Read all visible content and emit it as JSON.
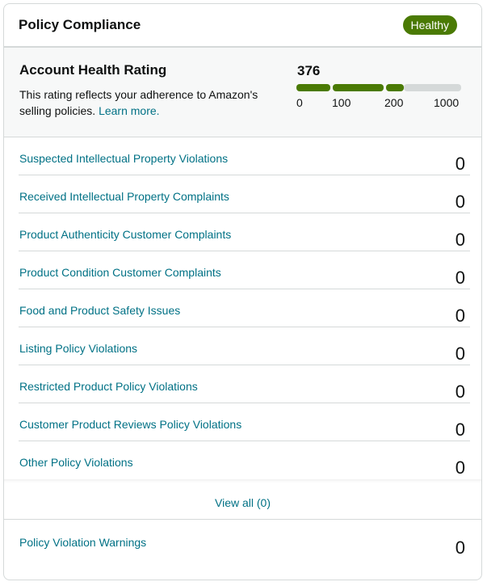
{
  "header": {
    "title": "Policy Compliance",
    "badge": "Healthy"
  },
  "rating": {
    "title": "Account Health Rating",
    "description": "This rating reflects your adherence to Amazon's selling policies.",
    "learn_more": "Learn more.",
    "score": "376",
    "scale_max": 1000,
    "ticks": [
      "0",
      "100",
      "200",
      "1000"
    ]
  },
  "violations": [
    {
      "label": "Suspected Intellectual Property Violations",
      "count": "0"
    },
    {
      "label": "Received Intellectual Property Complaints",
      "count": "0"
    },
    {
      "label": "Product Authenticity Customer Complaints",
      "count": "0"
    },
    {
      "label": "Product Condition Customer Complaints",
      "count": "0"
    },
    {
      "label": "Food and Product Safety Issues",
      "count": "0"
    },
    {
      "label": "Listing Policy Violations",
      "count": "0"
    },
    {
      "label": "Restricted Product Policy Violations",
      "count": "0"
    },
    {
      "label": "Customer Product Reviews Policy Violations",
      "count": "0"
    },
    {
      "label": "Other Policy Violations",
      "count": "0"
    }
  ],
  "view_all": "View all (0)",
  "warnings": {
    "label": "Policy Violation Warnings",
    "count": "0"
  },
  "colors": {
    "healthy": "#4a7a04",
    "link": "#007185",
    "border": "#d5d9d9"
  }
}
